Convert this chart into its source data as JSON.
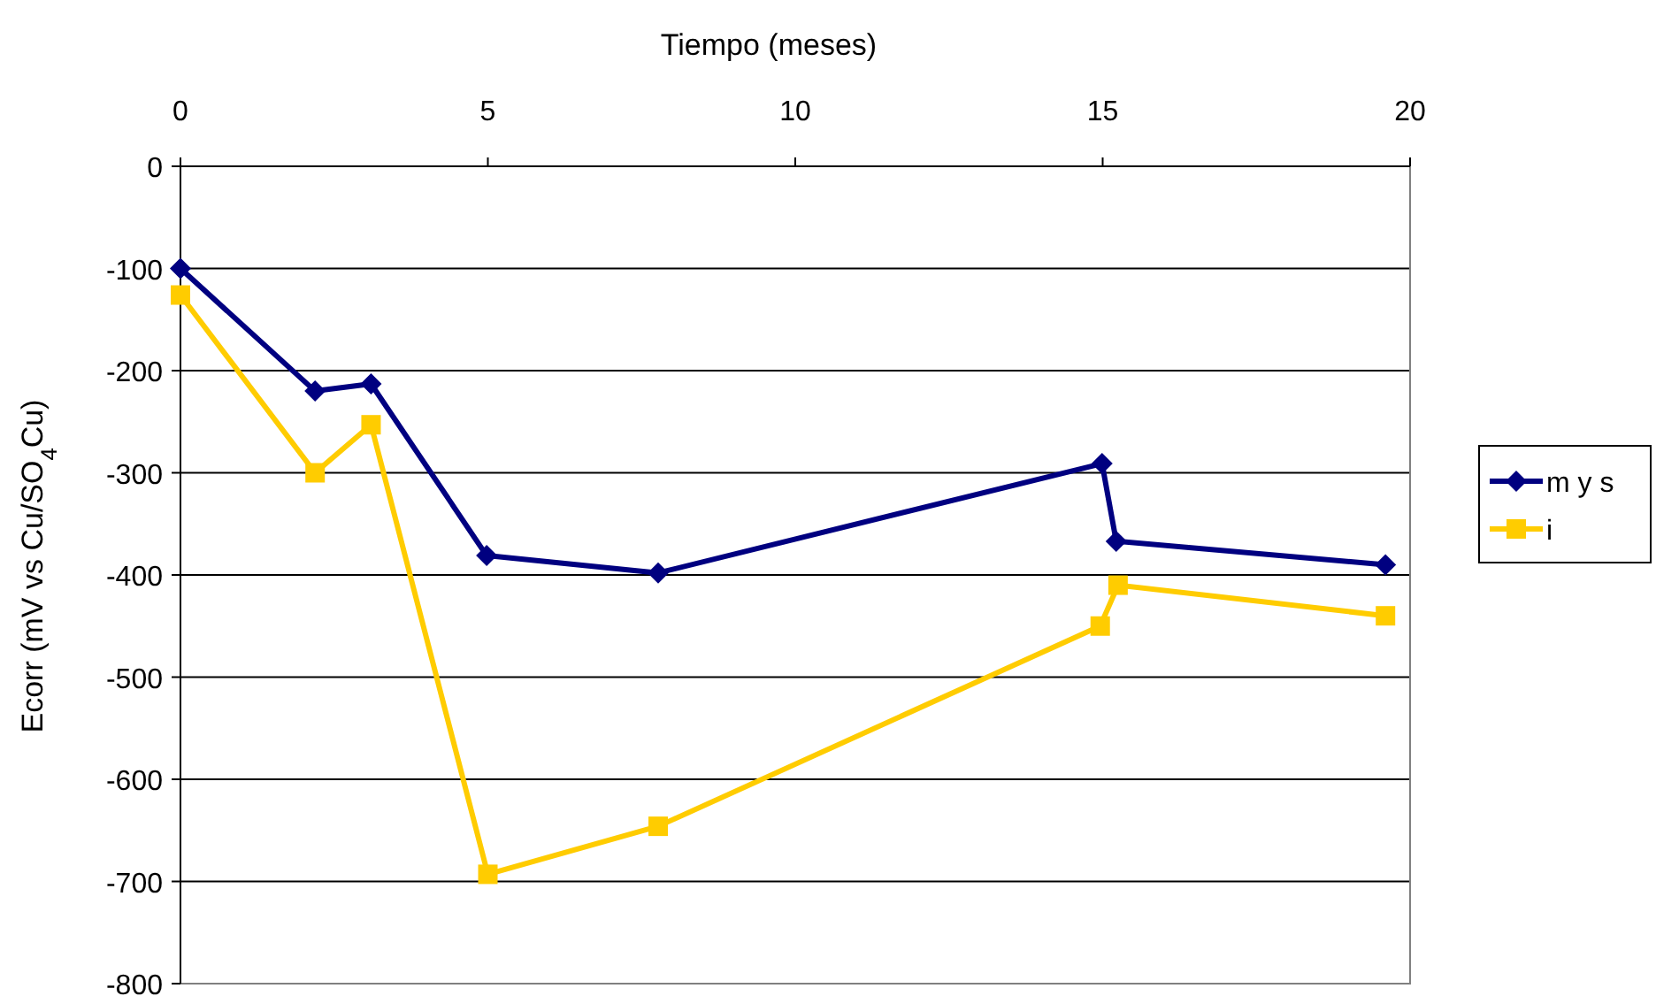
{
  "chart_data": {
    "type": "line",
    "xlabel": "Tiempo (meses)",
    "ylabel": "Ecorr (mV vs Cu/SO$_{4}$Cu)",
    "xlim": [
      0,
      20
    ],
    "xticks": [
      0,
      5,
      10,
      15,
      20
    ],
    "ylim": [
      -800,
      0
    ],
    "yticks": [
      -800,
      -700,
      -600,
      -500,
      -400,
      -300,
      -200,
      -100,
      0
    ],
    "grid": "y",
    "legend": "right",
    "line_style": "solid",
    "series": [
      {
        "name": "m y s",
        "color": "#000080",
        "marker": "diamond",
        "x": [
          0,
          2.19,
          3.1,
          4.98,
          7.77,
          14.99,
          15.22,
          19.6
        ],
        "values": [
          -100,
          -220,
          -213,
          -381,
          -398,
          -291,
          -367,
          -390
        ]
      },
      {
        "name": "i",
        "color": "#ffcc00",
        "marker": "square",
        "x": [
          0,
          2.19,
          3.1,
          5,
          7.77,
          14.96,
          15.25,
          19.6
        ],
        "values": [
          -126,
          -300,
          -253,
          -693,
          -646,
          -450,
          -410,
          -440
        ]
      }
    ]
  }
}
